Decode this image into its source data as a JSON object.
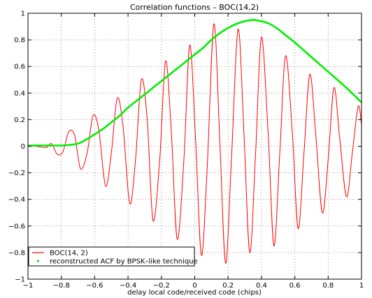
{
  "chart_data": {
    "type": "line",
    "title": "Correlation functions – BOC(14,2)",
    "xlabel": "delay local code/received code (chips)",
    "ylabel": "",
    "xlim": [
      -1,
      1
    ],
    "ylim": [
      -1,
      1
    ],
    "x_ticks": [
      -1,
      -0.8,
      -0.6,
      -0.4,
      -0.2,
      0,
      0.2,
      0.4,
      0.6,
      0.8,
      1
    ],
    "x_tick_labels": [
      "−1",
      "−0.8",
      "−0.6",
      "−0.4",
      "−0.2",
      "0",
      "0.2",
      "0.4",
      "0.6",
      "0.8",
      "1"
    ],
    "y_ticks": [
      -1,
      -0.8,
      -0.6,
      -0.4,
      -0.2,
      0,
      0.2,
      0.4,
      0.6,
      0.8,
      1
    ],
    "y_tick_labels": [
      "−1",
      "−0.8",
      "−0.6",
      "−0.4",
      "−0.2",
      "0",
      "0.2",
      "0.4",
      "0.6",
      "0.8",
      "1"
    ],
    "grid": true,
    "legend_position": "bottom-left",
    "series": [
      {
        "name": "BOC(14, 2)",
        "color": "#ff0000",
        "style": "solid",
        "x": [
          -1,
          -0.955,
          -0.89,
          -0.86,
          -0.825,
          -0.79,
          -0.755,
          -0.72,
          -0.685,
          -0.645,
          -0.61,
          -0.575,
          -0.535,
          -0.5,
          -0.465,
          -0.43,
          -0.39,
          -0.355,
          -0.32,
          -0.285,
          -0.25,
          -0.21,
          -0.175,
          -0.14,
          -0.105,
          -0.065,
          -0.03,
          0.005,
          0.04,
          0.075,
          0.115,
          0.15,
          0.185,
          0.22,
          0.26,
          0.295,
          0.33,
          0.365,
          0.4,
          0.44,
          0.475,
          0.51,
          0.545,
          0.585,
          0.62,
          0.655,
          0.69,
          0.725,
          0.765,
          0.8,
          0.835,
          0.87,
          0.91,
          0.945,
          0.98,
          1
        ],
        "y": [
          0,
          0,
          -0.01,
          0.02,
          -0.06,
          -0.04,
          0.11,
          0.08,
          -0.17,
          -0.05,
          0.23,
          0.12,
          -0.3,
          -0.05,
          0.36,
          0.15,
          -0.43,
          -0.1,
          0.5,
          0.2,
          -0.56,
          -0.1,
          0.64,
          0.1,
          -0.7,
          -0.1,
          0.76,
          0.05,
          -0.82,
          -0.15,
          0.92,
          0.05,
          -0.88,
          -0.1,
          0.88,
          0.1,
          -0.8,
          -0.05,
          0.82,
          0.1,
          -0.75,
          -0.05,
          0.68,
          0.1,
          -0.62,
          -0.05,
          0.54,
          0.1,
          -0.5,
          -0.1,
          0.44,
          0.05,
          -0.38,
          -0.05,
          0.3,
          0.16
        ]
      },
      {
        "name": "reconstructed ACF by BPSK–like technique",
        "color": "#00ee00",
        "style": "solid",
        "x": [
          -1,
          -0.9,
          -0.8,
          -0.75,
          -0.7,
          -0.65,
          -0.6,
          -0.55,
          -0.5,
          -0.45,
          -0.4,
          -0.35,
          -0.3,
          -0.25,
          -0.2,
          -0.15,
          -0.1,
          -0.05,
          0,
          0.05,
          0.1,
          0.15,
          0.2,
          0.25,
          0.3,
          0.35,
          0.4,
          0.45,
          0.5,
          0.55,
          0.6,
          0.7,
          0.8,
          0.9,
          1
        ],
        "y": [
          0.005,
          0.005,
          0.005,
          0.01,
          0.02,
          0.05,
          0.09,
          0.13,
          0.18,
          0.23,
          0.29,
          0.34,
          0.39,
          0.44,
          0.49,
          0.54,
          0.59,
          0.64,
          0.69,
          0.74,
          0.8,
          0.85,
          0.89,
          0.92,
          0.94,
          0.95,
          0.94,
          0.92,
          0.88,
          0.83,
          0.78,
          0.67,
          0.56,
          0.45,
          0.33
        ]
      }
    ]
  }
}
